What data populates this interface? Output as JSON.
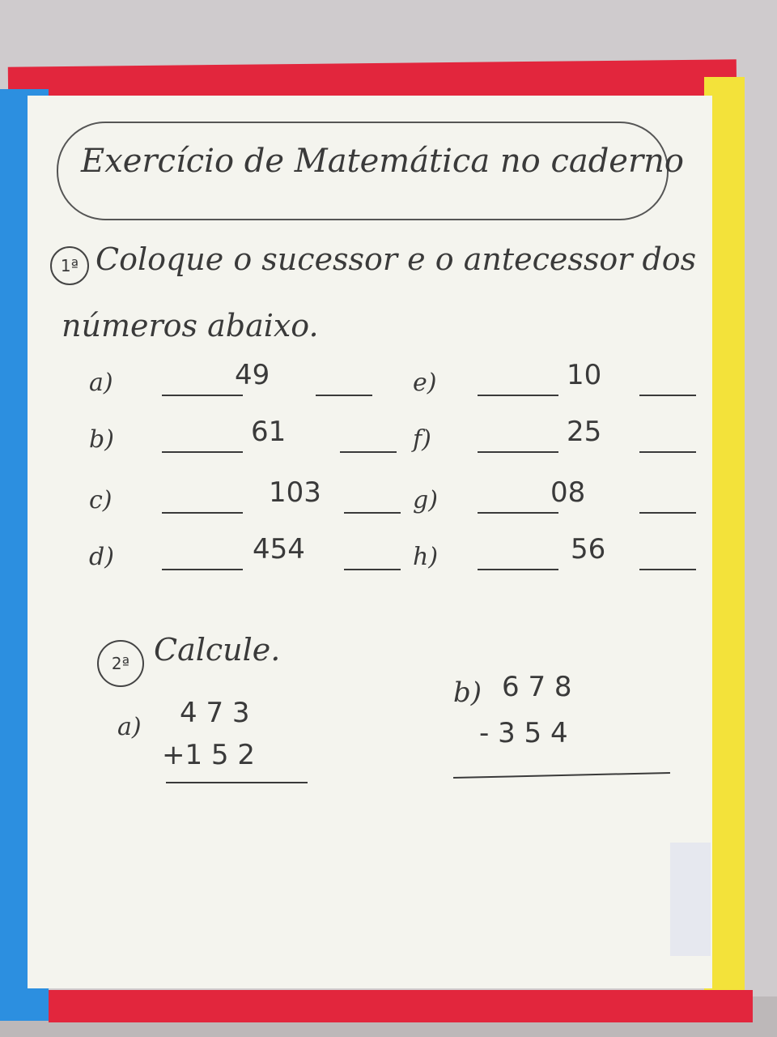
{
  "title": "Exercício de Matemática no caderno",
  "q1": {
    "number": "1ª",
    "text_line1": "Coloque o sucessor e o antecessor dos",
    "text_line2": "números abaixo.",
    "items": [
      {
        "label": "a)",
        "value": "49"
      },
      {
        "label": "b)",
        "value": "61"
      },
      {
        "label": "c)",
        "value": "103"
      },
      {
        "label": "d)",
        "value": "454"
      },
      {
        "label": "e)",
        "value": "10"
      },
      {
        "label": "f)",
        "value": "25"
      },
      {
        "label": "g)",
        "value": "08"
      },
      {
        "label": "h)",
        "value": "56"
      }
    ]
  },
  "q2": {
    "number": "2ª",
    "text": "Calcule.",
    "a": {
      "label": "a)",
      "top": "4 7 3",
      "bottom": "+1 5 2"
    },
    "b": {
      "label": "b)",
      "top": "6 7 8",
      "bottom": "- 3 5 4"
    }
  },
  "colors": {
    "frame_red": "#e2263d",
    "frame_blue": "#2c8fe0",
    "frame_yellow": "#f3e23a",
    "board": "#f4f4ee"
  }
}
